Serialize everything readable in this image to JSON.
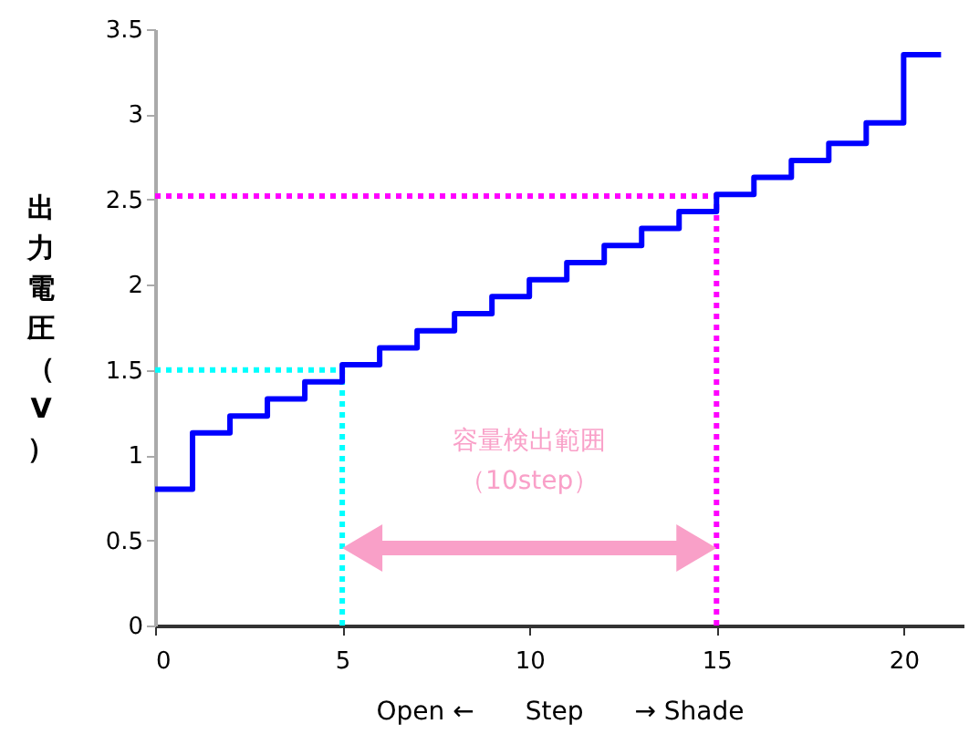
{
  "chart_data": {
    "type": "step",
    "xlabel": "Open ←　　Step　　→ Shade",
    "ylabel": "出力電圧（V）",
    "x": [
      0,
      1,
      2,
      3,
      4,
      5,
      6,
      7,
      8,
      9,
      10,
      11,
      12,
      13,
      14,
      15,
      16,
      17,
      18,
      19,
      20,
      21
    ],
    "series": [
      {
        "color": "#0000ff",
        "values": [
          0.8,
          1.13,
          1.23,
          1.33,
          1.43,
          1.53,
          1.63,
          1.73,
          1.83,
          1.93,
          2.03,
          2.13,
          2.23,
          2.33,
          2.43,
          2.53,
          2.63,
          2.73,
          2.83,
          2.95,
          3.35,
          3.35
        ]
      }
    ],
    "xlim": [
      0,
      21.6
    ],
    "xticks": [
      0,
      5,
      10,
      15,
      20
    ],
    "ylim": [
      0,
      3.5
    ],
    "yticks": [
      0,
      0.5,
      1,
      1.5,
      2,
      2.5,
      3,
      3.5
    ],
    "ref_lines": [
      {
        "axis": "x",
        "value": 5,
        "color": "#00ffff",
        "line_style": "dotted"
      },
      {
        "axis": "y",
        "value": 1.5,
        "color": "#00ffff",
        "line_style": "dotted"
      },
      {
        "axis": "x",
        "value": 15,
        "color": "#ff00ff",
        "line_style": "dotted"
      },
      {
        "axis": "y",
        "value": 2.52,
        "color": "#ff00ff",
        "line_style": "dotted"
      }
    ],
    "annotations": [
      "容量検出範囲",
      "（10step）"
    ],
    "grid": false,
    "line_style": "solid",
    "marker": "none"
  }
}
